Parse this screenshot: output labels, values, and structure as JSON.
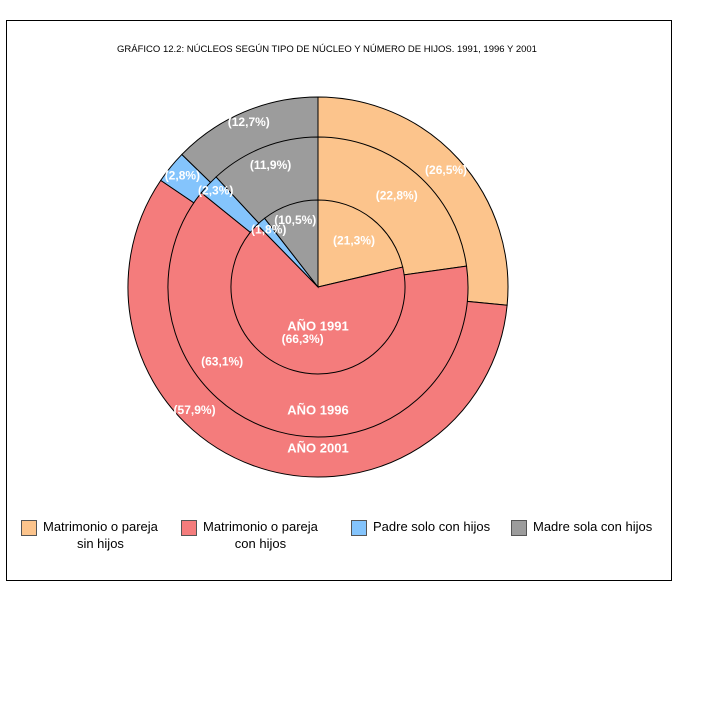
{
  "chart_data": {
    "type": "pie",
    "subtype": "nested-donut",
    "title": "GRÁFICO 12.2: NÚCLEOS SEGÚN TIPO DE NÚCLEO Y NÚMERO DE HIJOS. 1991, 1996 Y 2001",
    "categories": [
      "Matrimonio o pareja sin hijos",
      "Matrimonio o pareja con hijos",
      "Padre solo con hijos",
      "Madre sola con hijos"
    ],
    "colors": [
      "#fcc48c",
      "#f47c7c",
      "#84c4fc",
      "#9c9c9c"
    ],
    "series": [
      {
        "name": "AÑO 1991",
        "values": [
          21.3,
          66.3,
          1.8,
          10.5
        ],
        "labels": [
          "(21,3%)",
          "(66,3%)",
          "(1,8%)",
          "(10,5%)"
        ]
      },
      {
        "name": "AÑO 1996",
        "values": [
          22.8,
          63.1,
          2.3,
          11.9
        ],
        "labels": [
          "(22,8%)",
          "(63,1%)",
          "(2,3%)",
          "(11,9%)"
        ]
      },
      {
        "name": "AÑO 2001",
        "values": [
          26.5,
          57.9,
          2.8,
          12.7
        ],
        "labels": [
          "(26,5%)",
          "(57,9%)",
          "(2,8%)",
          "(12,7%)"
        ]
      }
    ],
    "legend_position": "bottom"
  },
  "legend": {
    "items": [
      {
        "line1": "Matrimonio o pareja",
        "line2": "sin hijos",
        "color": "#fcc48c"
      },
      {
        "line1": "Matrimonio o pareja",
        "line2": "con hijos",
        "color": "#f47c7c"
      },
      {
        "line1": "Padre solo con hijos",
        "line2": "",
        "color": "#84c4fc"
      },
      {
        "line1": "Madre sola con hijos",
        "line2": "",
        "color": "#9c9c9c"
      }
    ]
  }
}
